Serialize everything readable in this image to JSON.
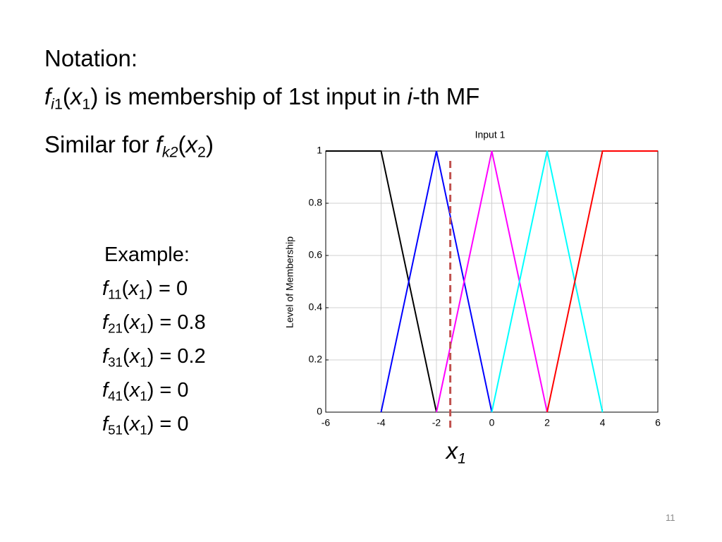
{
  "notation": {
    "heading": "Notation:",
    "line1": [
      "f",
      "i",
      "1",
      "(",
      "x",
      "1",
      ") is membership of 1st input in ",
      "i",
      "-th MF"
    ],
    "line2": [
      "Similar for ",
      "f",
      "k2",
      "(",
      "x",
      "2",
      ")"
    ]
  },
  "example": {
    "heading": "Example:",
    "lines": [
      [
        "f",
        "11",
        "(",
        "x",
        "1",
        ") = 0"
      ],
      [
        "f",
        "21",
        "(",
        "x",
        "1",
        ") = 0.8"
      ],
      [
        "f",
        "31",
        "(",
        "x",
        "1",
        ") = 0.2"
      ],
      [
        "f",
        "41",
        "(",
        "x",
        "1",
        ") = 0"
      ],
      [
        "f",
        "51",
        "(",
        "x",
        "1",
        ") = 0"
      ]
    ]
  },
  "chart_data": {
    "type": "line",
    "title": "Input 1",
    "y_label": "Level of Membership",
    "xlim": [
      -6,
      6
    ],
    "ylim": [
      0,
      1
    ],
    "xticks": [
      -6,
      -4,
      -2,
      0,
      2,
      4,
      6
    ],
    "yticks": [
      0,
      0.2,
      0.4,
      0.6,
      0.8,
      1
    ],
    "grid": true,
    "series": [
      {
        "color": "#000000",
        "x": [
          -6,
          -4,
          -2
        ],
        "values": [
          1,
          1,
          0
        ]
      },
      {
        "color": "#0000ff",
        "x": [
          -4,
          -2,
          0
        ],
        "values": [
          0,
          1,
          0
        ]
      },
      {
        "color": "#ff00ff",
        "x": [
          -2,
          0,
          2
        ],
        "values": [
          0,
          1,
          0
        ]
      },
      {
        "color": "#00ffff",
        "x": [
          0,
          2,
          4
        ],
        "values": [
          0,
          1,
          0
        ]
      },
      {
        "color": "#ff0000",
        "x": [
          2,
          4,
          6
        ],
        "values": [
          0,
          1,
          1
        ]
      }
    ],
    "marker": {
      "x": -1.5,
      "color": "#c0504d",
      "label": [
        "x",
        "1"
      ]
    }
  },
  "page_number": "11"
}
